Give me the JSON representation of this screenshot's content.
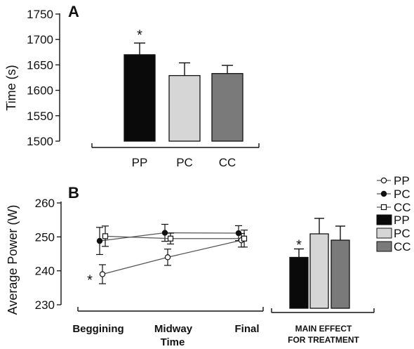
{
  "chart_data": [
    {
      "panel": "A",
      "type": "bar",
      "ylabel": "Time (s)",
      "ylim": [
        1500,
        1750
      ],
      "yticks": [
        1500,
        1550,
        1600,
        1650,
        1700,
        1750
      ],
      "categories": [
        "PP",
        "PC",
        "CC"
      ],
      "values": [
        1670,
        1629,
        1633
      ],
      "errors": [
        23,
        25,
        16
      ],
      "significance": [
        "*",
        "",
        ""
      ],
      "colors": [
        "#0a0a0a",
        "#d6d6d6",
        "#7a7a7a"
      ]
    },
    {
      "panel": "B",
      "type": "line",
      "ylabel": "Average Power (W)",
      "xlabel": "Time",
      "ylim": [
        230,
        260
      ],
      "yticks": [
        230,
        240,
        250,
        260
      ],
      "categories": [
        "Beggining",
        "Midway",
        "Final"
      ],
      "series": [
        {
          "name": "PP",
          "marker": "open-circle",
          "values": [
            239,
            244,
            249
          ],
          "errors": [
            2.8,
            2.4,
            2.0
          ],
          "significance": [
            "*",
            "",
            ""
          ]
        },
        {
          "name": "PC",
          "marker": "filled-circle",
          "values": [
            248.8,
            251.2,
            251.1
          ],
          "errors": [
            4.0,
            2.5,
            2.2
          ]
        },
        {
          "name": "CC",
          "marker": "open-square",
          "values": [
            250.2,
            249.5,
            249.5
          ],
          "errors": [
            3.0,
            1.6,
            2.5
          ]
        }
      ]
    },
    {
      "panel": "B-inset",
      "type": "bar",
      "xlabel_lines": [
        "MAIN EFFECT",
        "FOR TREATMENT"
      ],
      "categories": [
        "PP",
        "PC",
        "CC"
      ],
      "values": [
        244.5,
        251.2,
        249.4
      ],
      "errors": [
        2.4,
        4.4,
        4.0
      ],
      "significance": [
        "*",
        "",
        ""
      ],
      "colors": [
        "#0a0a0a",
        "#d6d6d6",
        "#7a7a7a"
      ]
    }
  ],
  "legend": {
    "lines": [
      {
        "label": "PP",
        "marker": "open-circle"
      },
      {
        "label": "PC",
        "marker": "filled-circle"
      },
      {
        "label": "CC",
        "marker": "open-square"
      }
    ],
    "bars": [
      {
        "label": "PP",
        "color": "#0a0a0a"
      },
      {
        "label": "PC",
        "color": "#d6d6d6"
      },
      {
        "label": "CC",
        "color": "#7a7a7a"
      }
    ]
  }
}
